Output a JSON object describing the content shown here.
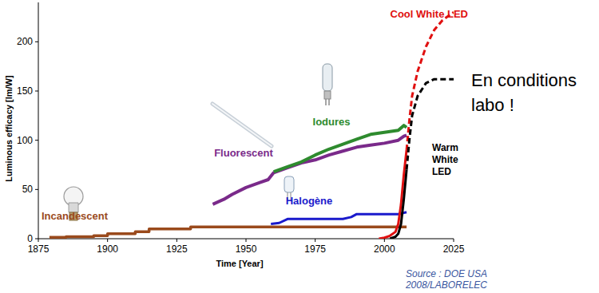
{
  "chart_data": {
    "type": "line",
    "x_label": "Time [Year]",
    "y_label": "Luminous efficacy [lm/W]",
    "xlim": [
      1875,
      2025
    ],
    "xticks": [
      1875,
      1900,
      1925,
      1950,
      1975,
      2000,
      2025
    ],
    "ylim": [
      0,
      240
    ],
    "yticks": [
      0,
      50,
      100,
      150,
      200
    ],
    "grid": false,
    "series": [
      {
        "name": "Incandescent",
        "color": "#9a4a1c",
        "line_style": "solid",
        "x": [
          1879,
          1885,
          1885,
          1895,
          1895,
          1900,
          1900,
          1910,
          1910,
          1915,
          1915,
          1930,
          1930,
          2008
        ],
        "values": [
          1.4,
          1.4,
          2,
          2,
          3,
          3,
          5,
          5,
          7,
          7,
          10,
          10,
          12,
          12
        ]
      },
      {
        "name": "Fluorescent",
        "color": "#7a2a8a",
        "line_style": "solid",
        "x": [
          1938,
          1942,
          1945,
          1950,
          1955,
          1958,
          1960,
          1965,
          1970,
          1975,
          1980,
          1985,
          1990,
          1995,
          2000,
          2005,
          2007,
          2008
        ],
        "values": [
          35,
          40,
          45,
          52,
          57,
          60,
          67,
          72,
          77,
          80,
          85,
          89,
          93,
          95,
          97,
          100,
          104,
          105
        ]
      },
      {
        "name": "Iodures",
        "color": "#2e8b2e",
        "line_style": "solid",
        "x": [
          1960,
          1965,
          1970,
          1975,
          1980,
          1985,
          1990,
          1995,
          2000,
          2005,
          2007,
          2008
        ],
        "values": [
          68,
          73,
          78,
          85,
          91,
          96,
          101,
          106,
          108,
          110,
          115,
          113
        ]
      },
      {
        "name": "Halogène",
        "color": "#1a1acc",
        "line_style": "solid",
        "x": [
          1959,
          1962,
          1965,
          1985,
          1988,
          1990,
          2005,
          2008
        ],
        "values": [
          15,
          16,
          20,
          20,
          22,
          25,
          25,
          27
        ]
      },
      {
        "name": "Cool White LED",
        "color": "#e01010",
        "line_style": "solid",
        "x": [
          1998,
          2000,
          2002,
          2004,
          2005,
          2006,
          2007,
          2008
        ],
        "values": [
          0,
          1,
          3,
          7,
          15,
          35,
          65,
          90
        ]
      },
      {
        "color": "#e01010",
        "line_style": "dashed",
        "x": [
          2008,
          2009,
          2010,
          2012,
          2015,
          2018,
          2021,
          2025
        ],
        "values": [
          90,
          120,
          145,
          170,
          195,
          212,
          222,
          230
        ]
      },
      {
        "name": "Warm White LED",
        "color": "#000000",
        "line_style": "solid",
        "x": [
          2002,
          2004,
          2005,
          2006,
          2007,
          2008
        ],
        "values": [
          0,
          2,
          5,
          15,
          40,
          70
        ]
      },
      {
        "color": "#000000",
        "line_style": "dashed",
        "x": [
          2008,
          2009,
          2010,
          2012,
          2015,
          2018,
          2025
        ],
        "values": [
          70,
          100,
          125,
          145,
          158,
          162,
          162
        ]
      }
    ],
    "annotation": [
      "En conditions",
      "labo !"
    ],
    "source": [
      "Source : DOE USA",
      "2008/LABORELEC"
    ]
  }
}
